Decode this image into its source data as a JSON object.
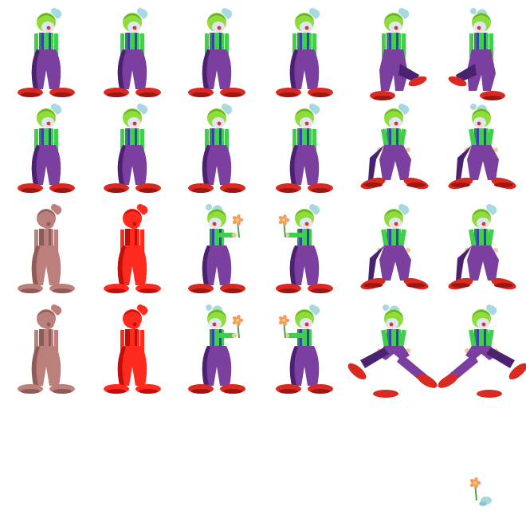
{
  "sheet": {
    "background": "#ffffff",
    "palette": {
      "hair": "#8fdc3c",
      "hair_dark": "#5fae22",
      "hat": "#a8d8e0",
      "face": "#dfe6f2",
      "nose": "#e0322a",
      "shirt": "#3fcf4a",
      "shirt_dark": "#1f9a34",
      "suspender": "#3a3fb8",
      "pants": "#7b3fa0",
      "pants_dark": "#4a2270",
      "shoe": "#d92a22",
      "shoe_dark": "#9e1612",
      "hand": "#f0c89a",
      "ghost": "#b06a64",
      "ghost_dark": "#7d3e3a",
      "flash": "#ff2a1e",
      "flash_dark": "#c20e08",
      "flower_petal": "#f29a6a",
      "flower_center": "#f2d23a",
      "flower_stem": "#4aa84a"
    },
    "rows": [
      {
        "id": "row-1",
        "frames": [
          {
            "pose": "idle",
            "facing": "right",
            "variant": "normal"
          },
          {
            "pose": "idle",
            "facing": "right",
            "variant": "normal"
          },
          {
            "pose": "idle",
            "facing": "right",
            "variant": "normal"
          },
          {
            "pose": "idle",
            "facing": "right",
            "variant": "normal"
          },
          {
            "pose": "kick",
            "facing": "right",
            "variant": "normal"
          },
          {
            "pose": "kick",
            "facing": "left",
            "variant": "normal"
          }
        ]
      },
      {
        "id": "row-2",
        "frames": [
          {
            "pose": "idle",
            "facing": "front",
            "variant": "normal"
          },
          {
            "pose": "idle",
            "facing": "front",
            "variant": "normal"
          },
          {
            "pose": "idle",
            "facing": "front",
            "variant": "normal"
          },
          {
            "pose": "idle",
            "facing": "front",
            "variant": "normal"
          },
          {
            "pose": "wide",
            "facing": "front",
            "variant": "normal"
          },
          {
            "pose": "wide",
            "facing": "left",
            "variant": "normal"
          }
        ]
      },
      {
        "id": "row-3",
        "frames": [
          {
            "pose": "idle",
            "facing": "front",
            "variant": "ghost"
          },
          {
            "pose": "idle",
            "facing": "front",
            "variant": "flash"
          },
          {
            "pose": "flower",
            "facing": "left",
            "variant": "normal"
          },
          {
            "pose": "flower",
            "facing": "right",
            "variant": "normal"
          },
          {
            "pose": "squat",
            "facing": "front",
            "variant": "normal"
          },
          {
            "pose": "squat",
            "facing": "front",
            "variant": "normal"
          }
        ]
      },
      {
        "id": "row-4",
        "frames": [
          {
            "pose": "idle",
            "facing": "back",
            "variant": "ghost"
          },
          {
            "pose": "idle",
            "facing": "back",
            "variant": "flash"
          },
          {
            "pose": "flower",
            "facing": "left",
            "variant": "normal"
          },
          {
            "pose": "flower",
            "facing": "right",
            "variant": "normal"
          },
          {
            "pose": "split",
            "facing": "left",
            "variant": "normal"
          },
          {
            "pose": "split",
            "facing": "right",
            "variant": "normal"
          }
        ]
      }
    ],
    "props": [
      {
        "name": "flower-prop",
        "kind": "flower"
      }
    ]
  }
}
